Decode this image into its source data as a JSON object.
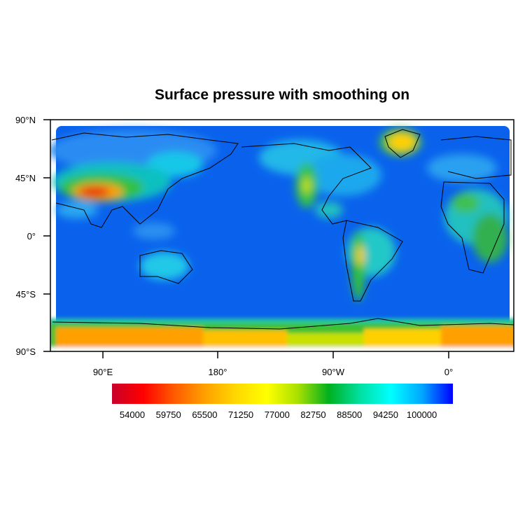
{
  "chart_data": {
    "type": "heatmap",
    "title": "Surface pressure with smoothing on",
    "projection": "cylindrical equidistant, global",
    "lat_ticks": [
      "90°N",
      "45°N",
      "0°",
      "45°S",
      "90°S"
    ],
    "lon_ticks": [
      "90°E",
      "180°",
      "90°W",
      "0°"
    ],
    "colorbar": {
      "labels": [
        "54000",
        "59750",
        "65500",
        "71250",
        "77000",
        "82750",
        "88500",
        "94250",
        "100000"
      ],
      "colors": [
        "#c8002a",
        "#ff0000",
        "#ff5a00",
        "#ffa000",
        "#ffd800",
        "#ffff00",
        "#a8e000",
        "#00b020",
        "#00e0a0",
        "#00ffff",
        "#00a8ff",
        "#0000ff"
      ]
    },
    "coastlines": true
  }
}
